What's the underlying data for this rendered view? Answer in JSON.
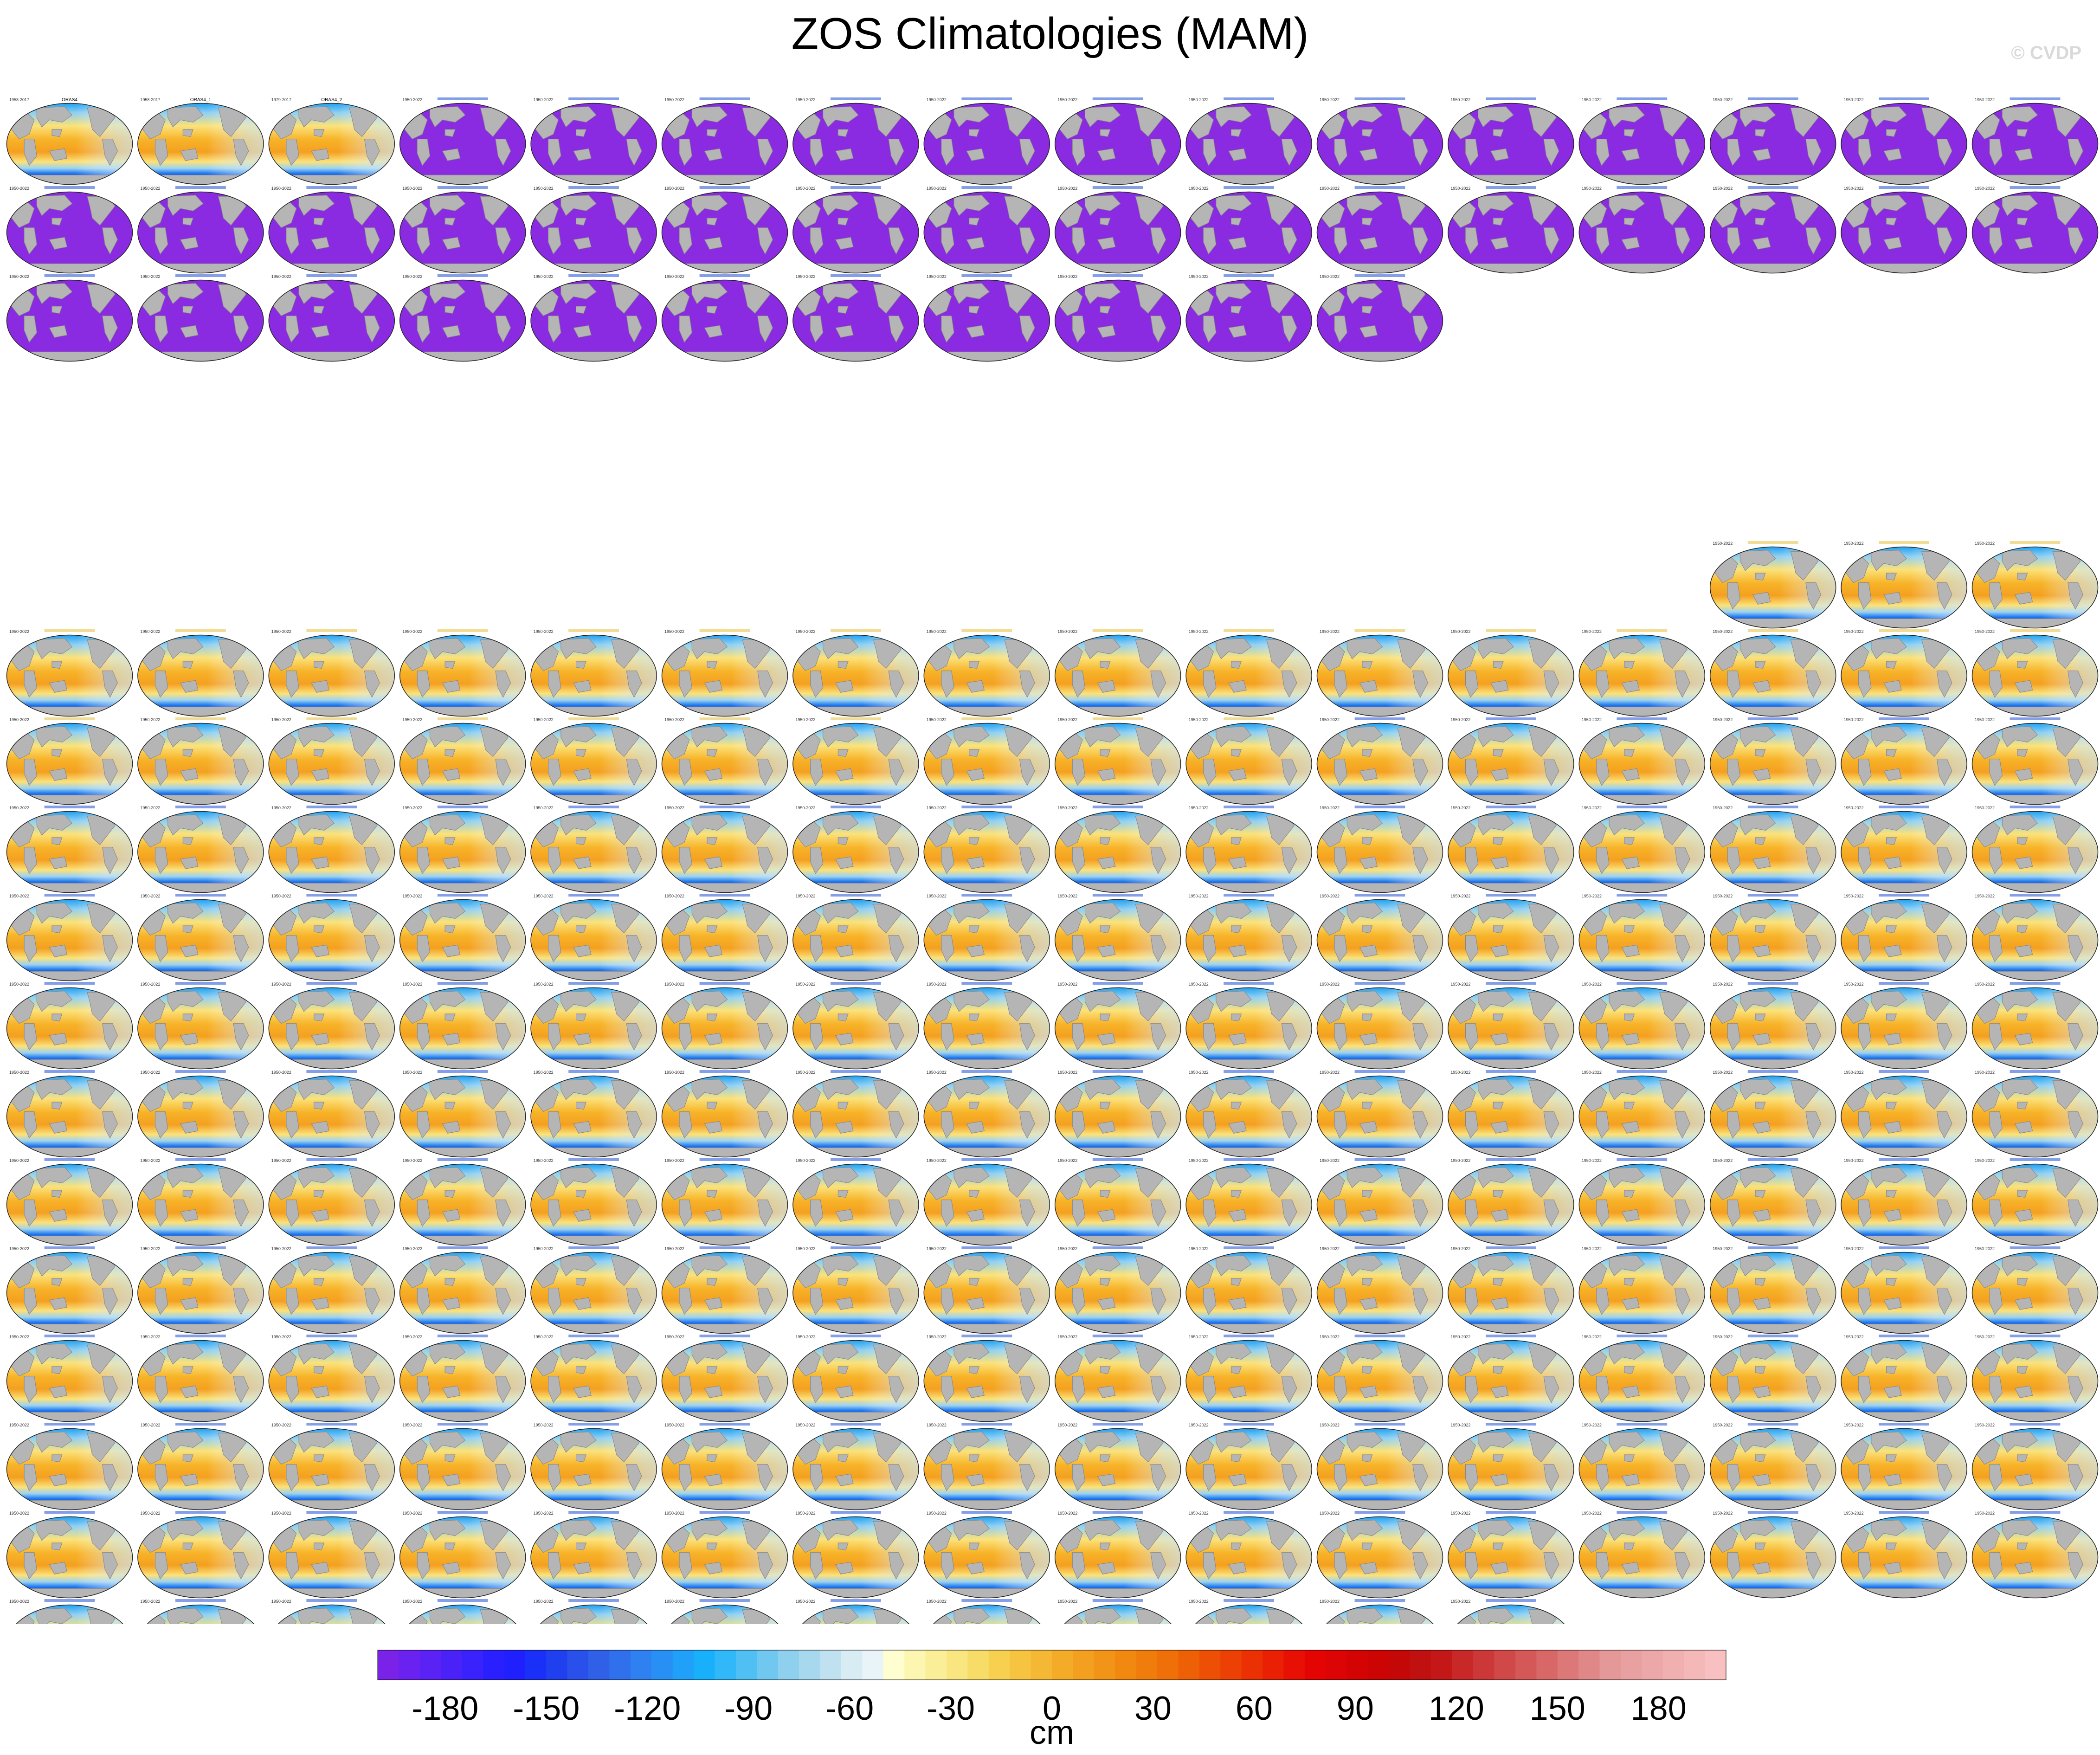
{
  "title": "ZOS Climatologies (MAM)",
  "watermark": "© CVDP",
  "colors": {
    "land": "#b5b5b5",
    "deep_negative": "#8a2be2",
    "background": "#ffffff",
    "header_obs": "#000000",
    "header_access": "#1f4fd6",
    "header_canesm": "#e6c040",
    "header_cesm": "#1f4fd6"
  },
  "chart_data": {
    "type": "heatmap",
    "title": "ZOS Climatologies (MAM)",
    "units": "cm",
    "colorbar": {
      "ticks": [
        -180,
        -150,
        -120,
        -90,
        -60,
        -30,
        0,
        30,
        60,
        90,
        120,
        150,
        180
      ],
      "range": [
        -200,
        200
      ],
      "label": "cm"
    },
    "panel_groups": [
      {
        "kind": "observations",
        "count": 3,
        "labels": [
          "ORAS4",
          "ORAS4_1",
          "ORAS4_2"
        ],
        "periods": [
          "1958-2017",
          "1958-2017",
          "1979-2017"
        ],
        "pattern": "positive-tropics"
      },
      {
        "kind": "ACCESS-ESM1-5",
        "count": 40,
        "period": "1950-2022",
        "pattern": "uniform-negative"
      },
      {
        "kind": "CanESM5",
        "count": 29,
        "period": "1950-2022",
        "pattern": "positive-tropics"
      },
      {
        "kind": "CESM1 / CESM2",
        "count": 162,
        "period": "1950-2022",
        "pattern": "positive-tropics"
      }
    ]
  }
}
